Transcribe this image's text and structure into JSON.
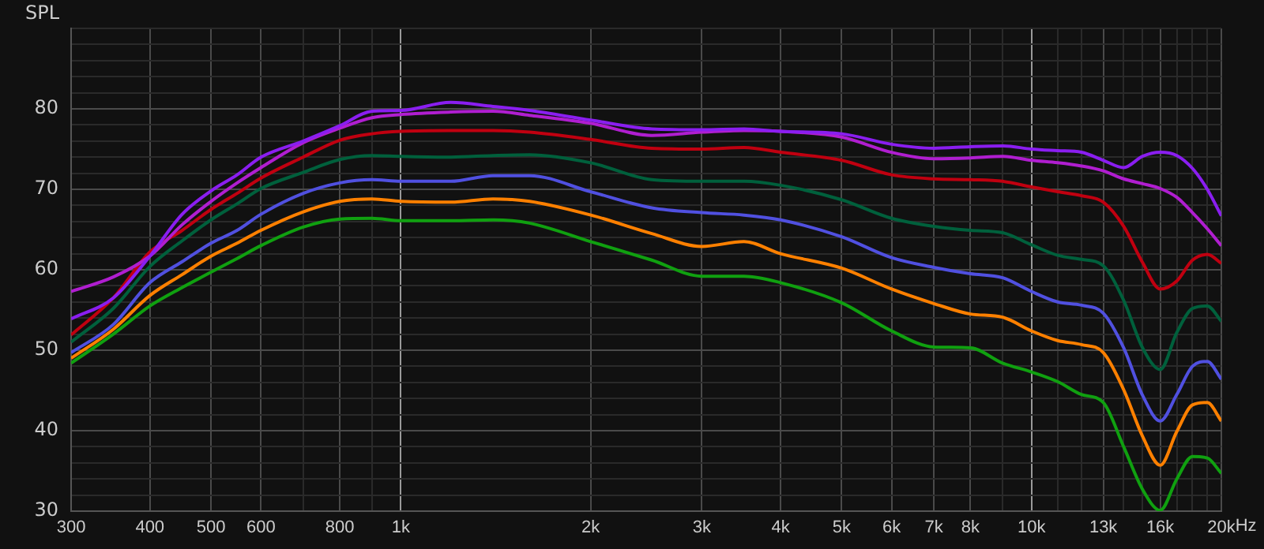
{
  "chart_data": {
    "type": "line",
    "ylabel": "SPL",
    "log": "x",
    "grid": true,
    "legend": false,
    "x": [
      300,
      350,
      400,
      450,
      500,
      550,
      600,
      700,
      800,
      900,
      1000,
      1200,
      1400,
      1600,
      2000,
      2500,
      3000,
      3500,
      4000,
      5000,
      6000,
      7000,
      8000,
      9000,
      10000,
      11000,
      12000,
      13000,
      14000,
      15000,
      16000,
      17000,
      18000,
      19000,
      20000
    ],
    "xlim": [
      300,
      20000
    ],
    "xticks": [
      300,
      400,
      500,
      600,
      {
        "value": 700,
        "label": null
      },
      800,
      {
        "value": 900,
        "label": null
      },
      {
        "value": 1000,
        "label": "1k"
      },
      {
        "value": 2000,
        "label": "2k"
      },
      {
        "value": 3000,
        "label": "3k"
      },
      {
        "value": 4000,
        "label": "4k"
      },
      {
        "value": 5000,
        "label": "5k"
      },
      {
        "value": 6000,
        "label": "6k"
      },
      {
        "value": 7000,
        "label": "7k"
      },
      {
        "value": 8000,
        "label": "8k"
      },
      {
        "value": 9000,
        "label": null
      },
      {
        "value": 10000,
        "label": "10k"
      },
      {
        "value": 11000,
        "label": null
      },
      {
        "value": 12000,
        "label": null
      },
      {
        "value": 13000,
        "label": "13k"
      },
      {
        "value": 14000,
        "label": null
      },
      {
        "value": 15000,
        "label": null
      },
      {
        "value": 16000,
        "label": "16k"
      },
      {
        "value": 17000,
        "label": null
      },
      {
        "value": 18000,
        "label": null
      },
      {
        "value": 19000,
        "label": null
      },
      {
        "value": 20000,
        "label": "20k"
      }
    ],
    "xlabel": "Hz",
    "ylim": [
      30,
      90
    ],
    "yticks": [
      30,
      {
        "value": 32,
        "label": null
      },
      {
        "value": 34,
        "label": null
      },
      {
        "value": 36,
        "label": null
      },
      {
        "value": 38,
        "label": null
      },
      40,
      {
        "value": 42,
        "label": null
      },
      {
        "value": 44,
        "label": null
      },
      {
        "value": 46,
        "label": null
      },
      {
        "value": 48,
        "label": null
      },
      50,
      {
        "value": 52,
        "label": null
      },
      {
        "value": 54,
        "label": null
      },
      {
        "value": 56,
        "label": null
      },
      {
        "value": 58,
        "label": null
      },
      60,
      {
        "value": 62,
        "label": null
      },
      {
        "value": 64,
        "label": null
      },
      {
        "value": 66,
        "label": null
      },
      {
        "value": 68,
        "label": null
      },
      70,
      {
        "value": 72,
        "label": null
      },
      {
        "value": 74,
        "label": null
      },
      {
        "value": 76,
        "label": null
      },
      {
        "value": 78,
        "label": null
      },
      80,
      {
        "value": 82,
        "label": null
      },
      {
        "value": 84,
        "label": null
      },
      {
        "value": 86,
        "label": null
      },
      {
        "value": 88,
        "label": null
      },
      {
        "value": 90,
        "label": null
      }
    ],
    "series": [
      {
        "color": "#8a1ef0",
        "values": [
          53.9,
          56.5,
          61.7,
          66.9,
          69.8,
          71.8,
          74,
          76,
          77.9,
          79.7,
          79.8,
          80.8,
          80.3,
          79.8,
          78.6,
          77.5,
          77.4,
          77.5,
          77.2,
          76.9,
          75.6,
          75.1,
          75.3,
          75.4,
          75,
          74.8,
          74.6,
          73.6,
          72.7,
          74.1,
          74.6,
          74.2,
          72.6,
          70,
          66.7
        ]
      },
      {
        "color": "#b01ed0",
        "values": [
          57.3,
          59.1,
          61.7,
          65.6,
          68.5,
          70.8,
          72.7,
          75.8,
          77.6,
          78.9,
          79.3,
          79.6,
          79.7,
          79.2,
          78.2,
          76.7,
          77.1,
          77.3,
          77.2,
          76.5,
          74.6,
          73.8,
          73.9,
          74.1,
          73.6,
          73.3,
          72.9,
          72.3,
          71.3,
          70.7,
          70.1,
          69,
          67.1,
          65.1,
          63
        ]
      },
      {
        "color": "#c00010",
        "values": [
          51.9,
          56.5,
          62.2,
          64.9,
          67.5,
          69.5,
          71.4,
          74,
          76.1,
          76.9,
          77.2,
          77.3,
          77.3,
          77.1,
          76.2,
          75.1,
          75,
          75.2,
          74.6,
          73.6,
          71.8,
          71.3,
          71.2,
          71,
          70.3,
          69.7,
          69.2,
          68.4,
          65.4,
          60.9,
          57.6,
          58.6,
          61.2,
          61.9,
          60.8
        ]
      },
      {
        "color": "#00603c",
        "values": [
          51,
          55.2,
          60.4,
          63.6,
          66.2,
          68.2,
          70.1,
          72.1,
          73.7,
          74.2,
          74.1,
          74,
          74.2,
          74.3,
          73.3,
          71.2,
          71,
          71,
          70.5,
          68.7,
          66.4,
          65.4,
          64.9,
          64.6,
          63.1,
          61.8,
          61.3,
          60.5,
          56.2,
          50.3,
          47.6,
          52.2,
          55.2,
          55.5,
          53.6
        ]
      },
      {
        "color": "#5050e0",
        "values": [
          49.7,
          53.2,
          58.4,
          61,
          63.3,
          64.9,
          66.9,
          69.5,
          70.8,
          71.2,
          71,
          71,
          71.7,
          71.7,
          69.7,
          67.7,
          67.1,
          66.8,
          66.2,
          64.1,
          61.5,
          60.3,
          59.5,
          59,
          57.3,
          56,
          55.6,
          54.6,
          50.3,
          44.4,
          41.2,
          44.5,
          48,
          48.6,
          46.4
        ]
      },
      {
        "color": "#ff8000",
        "values": [
          49,
          52.6,
          56.8,
          59.4,
          61.7,
          63.3,
          64.9,
          67.2,
          68.5,
          68.8,
          68.5,
          68.4,
          68.8,
          68.5,
          66.8,
          64.5,
          62.9,
          63.5,
          62,
          60.2,
          57.6,
          55.8,
          54.5,
          54.1,
          52.4,
          51.2,
          50.7,
          49.7,
          45.1,
          39.3,
          35.7,
          39.9,
          43.2,
          43.5,
          41.2
        ]
      },
      {
        "color": "#10a010",
        "values": [
          48.4,
          52,
          55.5,
          57.8,
          59.7,
          61.4,
          63,
          65.3,
          66.3,
          66.4,
          66.1,
          66.1,
          66.2,
          65.8,
          63.5,
          61.2,
          59.2,
          59.2,
          58.4,
          55.9,
          52.4,
          50.4,
          50.3,
          48.4,
          47.3,
          46.1,
          44.5,
          43.5,
          38,
          32.7,
          30.1,
          34,
          36.8,
          36.6,
          34.7
        ]
      }
    ]
  }
}
